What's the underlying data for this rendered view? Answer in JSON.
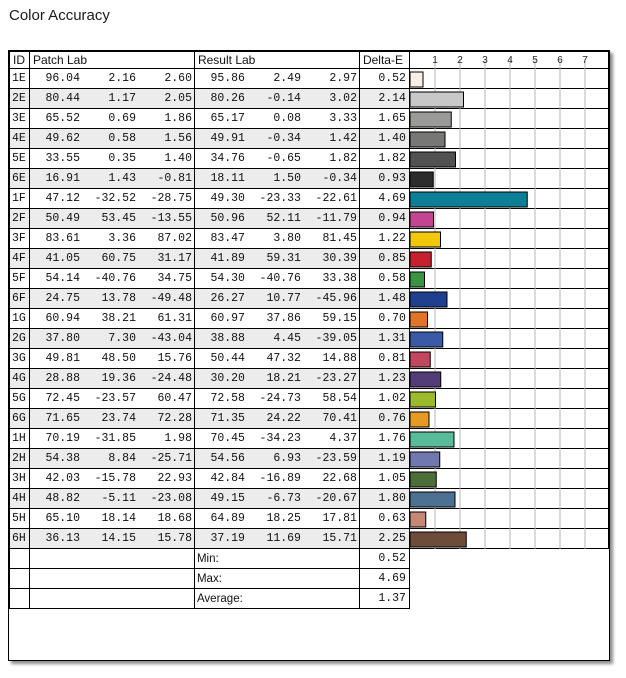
{
  "title": "Color Accuracy",
  "headers": {
    "id": "ID",
    "patch": "Patch Lab",
    "result": "Result Lab",
    "delta": "Delta-E"
  },
  "rows": [
    {
      "id": "1E",
      "patch": [
        "96.04",
        "2.16",
        "2.60"
      ],
      "result": [
        "95.86",
        "2.49",
        "2.97"
      ],
      "delta": "0.52",
      "color": "#f7f0e4"
    },
    {
      "id": "2E",
      "patch": [
        "80.44",
        "1.17",
        "2.05"
      ],
      "result": [
        "80.26",
        "-0.14",
        "3.02"
      ],
      "delta": "2.14",
      "color": "#c8c8c8"
    },
    {
      "id": "3E",
      "patch": [
        "65.52",
        "0.69",
        "1.86"
      ],
      "result": [
        "65.17",
        "0.08",
        "3.33"
      ],
      "delta": "1.65",
      "color": "#9a9a98"
    },
    {
      "id": "4E",
      "patch": [
        "49.62",
        "0.58",
        "1.56"
      ],
      "result": [
        "49.91",
        "-0.34",
        "1.42"
      ],
      "delta": "1.40",
      "color": "#777775"
    },
    {
      "id": "5E",
      "patch": [
        "33.55",
        "0.35",
        "1.40"
      ],
      "result": [
        "34.76",
        "-0.65",
        "1.82"
      ],
      "delta": "1.82",
      "color": "#515151"
    },
    {
      "id": "6E",
      "patch": [
        "16.91",
        "1.43",
        "-0.81"
      ],
      "result": [
        "18.11",
        "1.50",
        "-0.34"
      ],
      "delta": "0.93",
      "color": "#2c2c2c"
    },
    {
      "id": "1F",
      "patch": [
        "47.12",
        "-32.52",
        "-28.75"
      ],
      "result": [
        "49.30",
        "-23.33",
        "-22.61"
      ],
      "delta": "4.69",
      "color": "#0a7f96"
    },
    {
      "id": "2F",
      "patch": [
        "50.49",
        "53.45",
        "-13.55"
      ],
      "result": [
        "50.96",
        "52.11",
        "-11.79"
      ],
      "delta": "0.94",
      "color": "#c34592"
    },
    {
      "id": "3F",
      "patch": [
        "83.61",
        "3.36",
        "87.02"
      ],
      "result": [
        "83.47",
        "3.80",
        "81.45"
      ],
      "delta": "1.22",
      "color": "#f1c80a"
    },
    {
      "id": "4F",
      "patch": [
        "41.05",
        "60.75",
        "31.17"
      ],
      "result": [
        "41.89",
        "59.31",
        "30.39"
      ],
      "delta": "0.85",
      "color": "#c5222e"
    },
    {
      "id": "5F",
      "patch": [
        "54.14",
        "-40.76",
        "34.75"
      ],
      "result": [
        "54.30",
        "-40.76",
        "33.38"
      ],
      "delta": "0.58",
      "color": "#3a9543"
    },
    {
      "id": "6F",
      "patch": [
        "24.75",
        "13.78",
        "-49.48"
      ],
      "result": [
        "26.27",
        "10.77",
        "-45.96"
      ],
      "delta": "1.48",
      "color": "#1f3f8f"
    },
    {
      "id": "1G",
      "patch": [
        "60.94",
        "38.21",
        "61.31"
      ],
      "result": [
        "60.97",
        "37.86",
        "59.15"
      ],
      "delta": "0.70",
      "color": "#e07428"
    },
    {
      "id": "2G",
      "patch": [
        "37.80",
        "7.30",
        "-43.04"
      ],
      "result": [
        "38.88",
        "4.45",
        "-39.05"
      ],
      "delta": "1.31",
      "color": "#3b5aa6"
    },
    {
      "id": "3G",
      "patch": [
        "49.81",
        "48.50",
        "15.76"
      ],
      "result": [
        "50.44",
        "47.32",
        "14.88"
      ],
      "delta": "0.81",
      "color": "#c2475e"
    },
    {
      "id": "4G",
      "patch": [
        "28.88",
        "19.36",
        "-24.48"
      ],
      "result": [
        "30.20",
        "18.21",
        "-23.27"
      ],
      "delta": "1.23",
      "color": "#533d78"
    },
    {
      "id": "5G",
      "patch": [
        "72.45",
        "-23.57",
        "60.47"
      ],
      "result": [
        "72.58",
        "-24.73",
        "58.54"
      ],
      "delta": "1.02",
      "color": "#9bbb2d"
    },
    {
      "id": "6G",
      "patch": [
        "71.65",
        "23.74",
        "72.28"
      ],
      "result": [
        "71.35",
        "24.22",
        "70.41"
      ],
      "delta": "0.76",
      "color": "#e69a22"
    },
    {
      "id": "1H",
      "patch": [
        "70.19",
        "-31.85",
        "1.98"
      ],
      "result": [
        "70.45",
        "-34.23",
        "4.37"
      ],
      "delta": "1.76",
      "color": "#58bb99"
    },
    {
      "id": "2H",
      "patch": [
        "54.38",
        "8.84",
        "-25.71"
      ],
      "result": [
        "54.56",
        "6.93",
        "-23.59"
      ],
      "delta": "1.19",
      "color": "#6f79b0"
    },
    {
      "id": "3H",
      "patch": [
        "42.03",
        "-15.78",
        "22.93"
      ],
      "result": [
        "42.84",
        "-16.89",
        "22.68"
      ],
      "delta": "1.05",
      "color": "#4d6e39"
    },
    {
      "id": "4H",
      "patch": [
        "48.82",
        "-5.11",
        "-23.08"
      ],
      "result": [
        "49.15",
        "-6.73",
        "-20.67"
      ],
      "delta": "1.80",
      "color": "#4d7192"
    },
    {
      "id": "5H",
      "patch": [
        "65.10",
        "18.14",
        "18.68"
      ],
      "result": [
        "64.89",
        "18.25",
        "17.81"
      ],
      "delta": "0.63",
      "color": "#c58877"
    },
    {
      "id": "6H",
      "patch": [
        "36.13",
        "14.15",
        "15.78"
      ],
      "result": [
        "37.19",
        "11.69",
        "15.71"
      ],
      "delta": "2.25",
      "color": "#6e4c3a"
    }
  ],
  "summary": [
    {
      "label": "Min:",
      "value": "0.52"
    },
    {
      "label": "Max:",
      "value": "4.69"
    },
    {
      "label": "Average:",
      "value": "1.37"
    }
  ],
  "chart_data": {
    "type": "bar",
    "orientation": "horizontal",
    "title": "Color Accuracy",
    "categories": [
      "1E",
      "2E",
      "3E",
      "4E",
      "5E",
      "6E",
      "1F",
      "2F",
      "3F",
      "4F",
      "5F",
      "6F",
      "1G",
      "2G",
      "3G",
      "4G",
      "5G",
      "6G",
      "1H",
      "2H",
      "3H",
      "4H",
      "5H",
      "6H"
    ],
    "values": [
      0.52,
      2.14,
      1.65,
      1.4,
      1.82,
      0.93,
      4.69,
      0.94,
      1.22,
      0.85,
      0.58,
      1.48,
      0.7,
      1.31,
      0.81,
      1.23,
      1.02,
      0.76,
      1.76,
      1.19,
      1.05,
      1.8,
      0.63,
      2.25
    ],
    "xlim": [
      0,
      8
    ],
    "xticks": [
      1,
      2,
      3,
      4,
      5,
      6,
      7
    ],
    "grid": true
  }
}
